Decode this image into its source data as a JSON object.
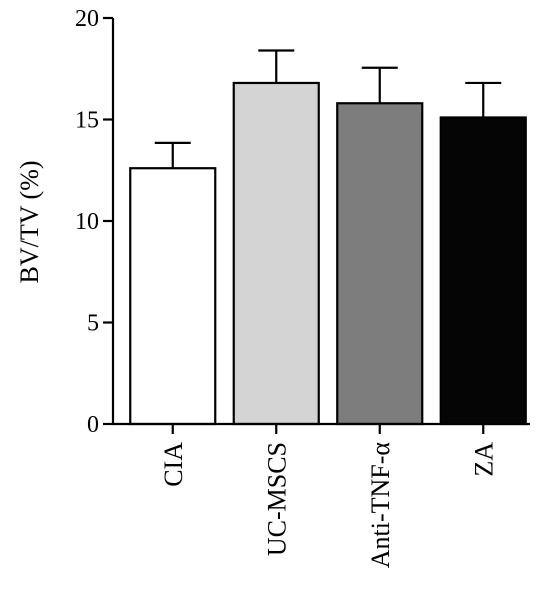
{
  "chart_data": {
    "type": "bar",
    "title": "",
    "xlabel": "",
    "ylabel": "BV/TV (%)",
    "ylim": [
      0,
      20
    ],
    "yticks": [
      0,
      5,
      10,
      15,
      20
    ],
    "categories": [
      "CIA",
      "UC-MSCS",
      "Anti-TNF-α",
      "ZA"
    ],
    "values": [
      12.6,
      16.8,
      15.8,
      15.1
    ],
    "errors": [
      1.25,
      1.6,
      1.75,
      1.7
    ],
    "bar_colors": [
      "#ffffff",
      "#d4d4d4",
      "#7d7d7d",
      "#050505"
    ],
    "grid": false,
    "legend": "none"
  }
}
